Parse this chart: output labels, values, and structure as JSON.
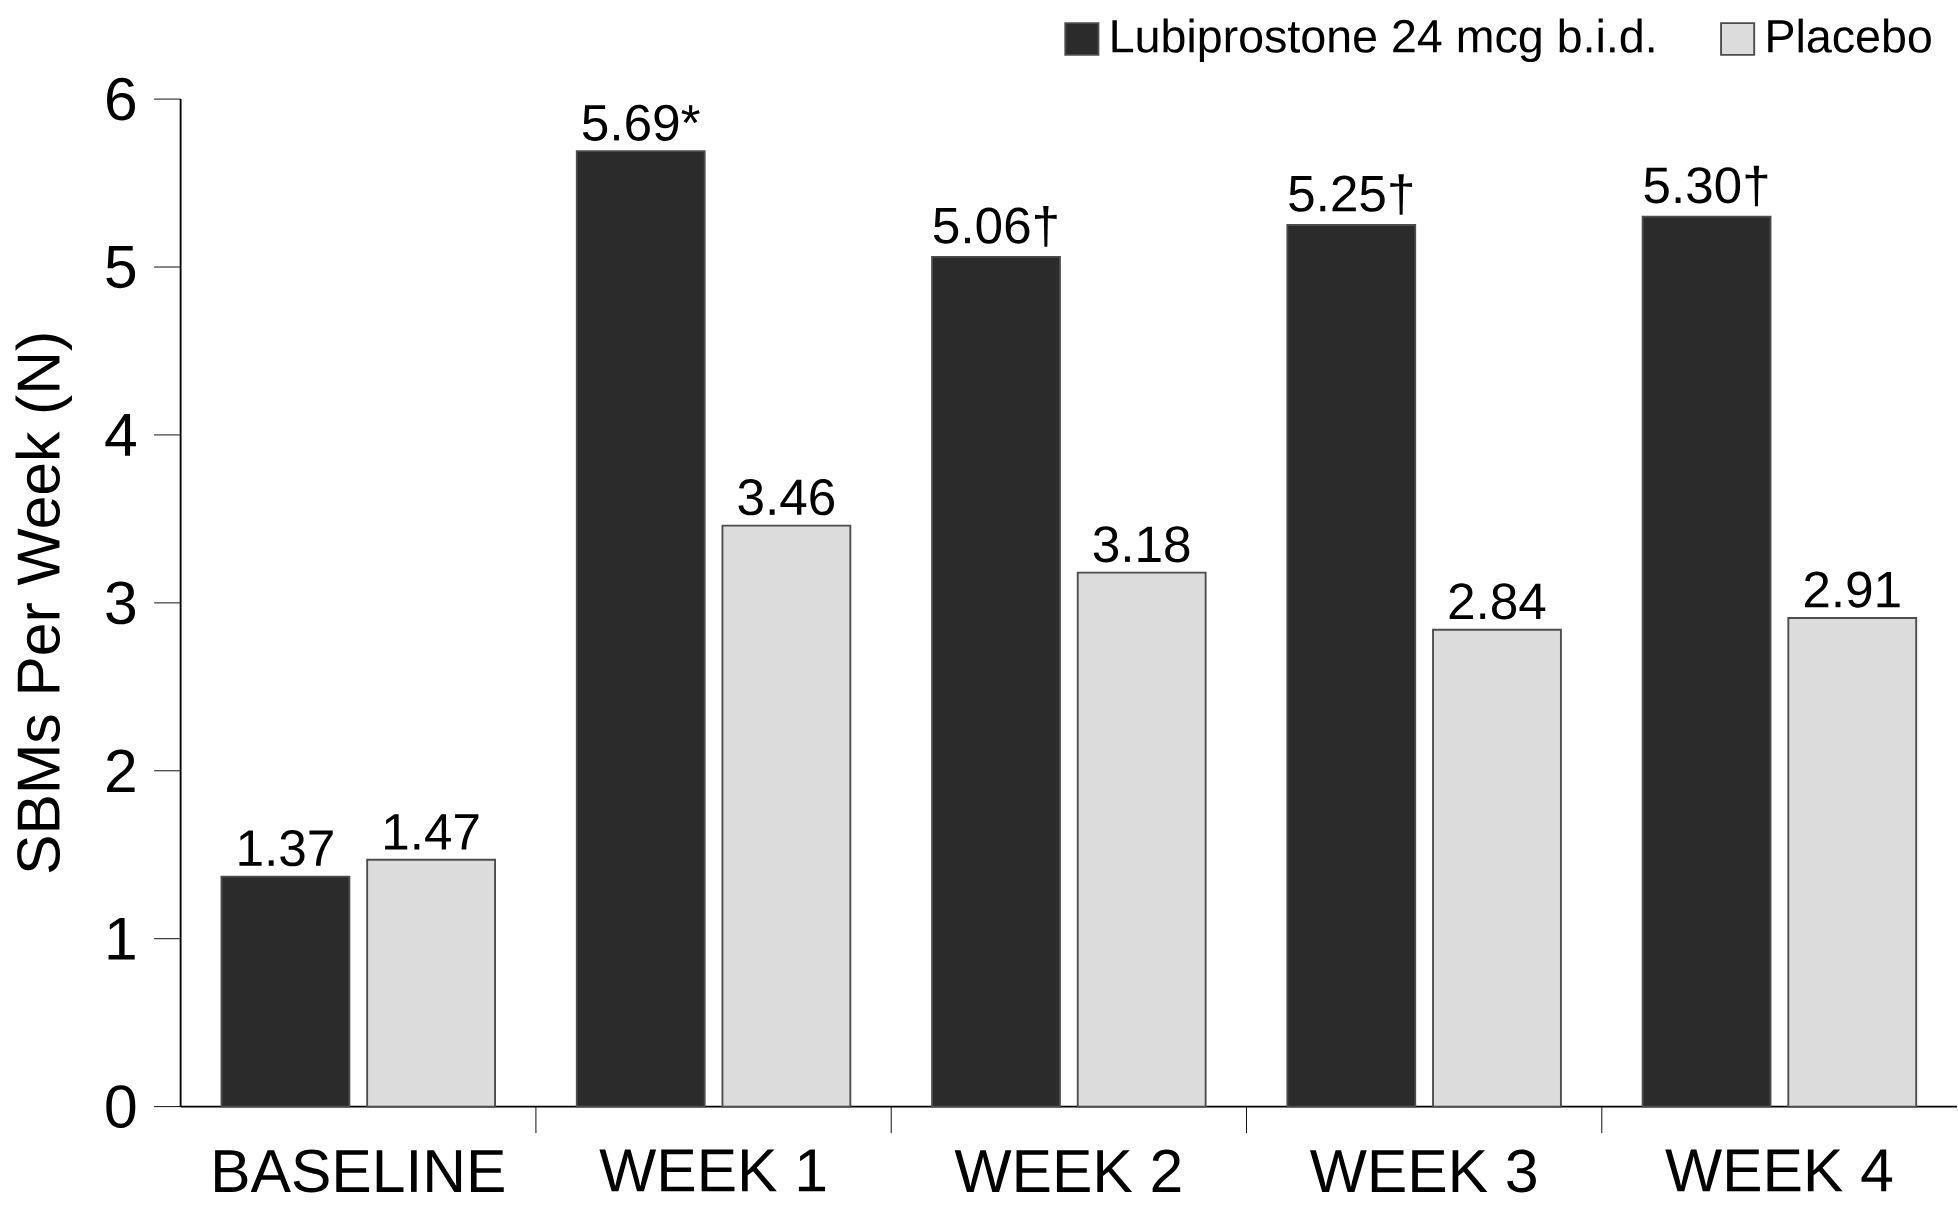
{
  "chart_data": {
    "type": "bar",
    "ylabel": "SBMs Per Week (N)",
    "categories": [
      "BASELINE",
      "WEEK 1",
      "WEEK 2",
      "WEEK 3",
      "WEEK 4"
    ],
    "series": [
      {
        "name": "Lubiprostone 24 mcg b.i.d.",
        "color": "#2b2b2b",
        "values": [
          1.37,
          5.69,
          5.06,
          5.25,
          5.3
        ],
        "value_labels": [
          "1.37",
          "5.69*",
          "5.06†",
          "5.25†",
          "5.30†"
        ]
      },
      {
        "name": "Placebo",
        "color": "#dcdcdc",
        "values": [
          1.47,
          3.46,
          3.18,
          2.84,
          2.91
        ],
        "value_labels": [
          "1.47",
          "3.46",
          "3.18",
          "2.84",
          "2.91"
        ]
      }
    ],
    "ylim": [
      0,
      6
    ],
    "yticks": [
      0,
      1,
      2,
      3,
      4,
      5,
      6
    ],
    "legend": "top right",
    "grid": false
  }
}
